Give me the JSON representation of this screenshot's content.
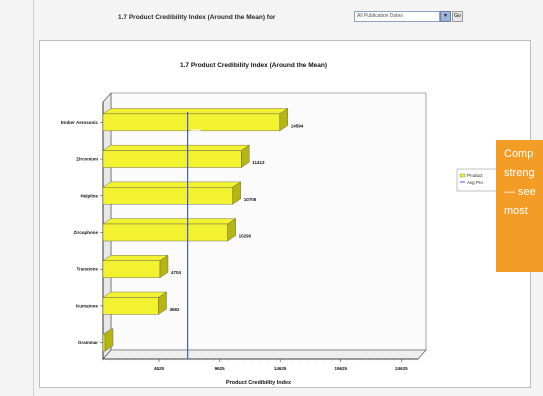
{
  "header": {
    "title": "1.7 Product Credibility Index (Around the Mean) for",
    "filter_value": "All Publication Dates",
    "go_label": "Go"
  },
  "callout": {
    "lines": [
      "Comp",
      "streng",
      "— see",
      "most"
    ]
  },
  "legend": {
    "entries": [
      "Product",
      "Avg Pro"
    ]
  },
  "chart_data": {
    "type": "bar",
    "orientation": "horizontal",
    "title": "1.7      Product Credibility Index (Around the Mean)",
    "xlabel": "Product Credibility Index",
    "categories": [
      "Ember Aerosonic",
      "Zirconium",
      "Helpline",
      "Zircophone",
      "Transtone",
      "Kumatone",
      "Grammar"
    ],
    "values": [
      14594,
      11413,
      10705,
      10290,
      4704,
      4582,
      0
    ],
    "data_labels": [
      "14594",
      "11413",
      "10705",
      "10290",
      "4704",
      "4582",
      ""
    ],
    "mean": 6985,
    "mean_label": "6985",
    "xlim": [
      0,
      26000
    ],
    "xticks": [
      4625,
      9625,
      14625,
      19625,
      24625
    ],
    "xtick_labels": [
      "4625",
      "9625",
      "14625",
      "19625",
      "24625"
    ],
    "colors": {
      "bar": "#f2f230",
      "bar_side": "#b5b515",
      "mean_line": "#4a59c9"
    }
  }
}
